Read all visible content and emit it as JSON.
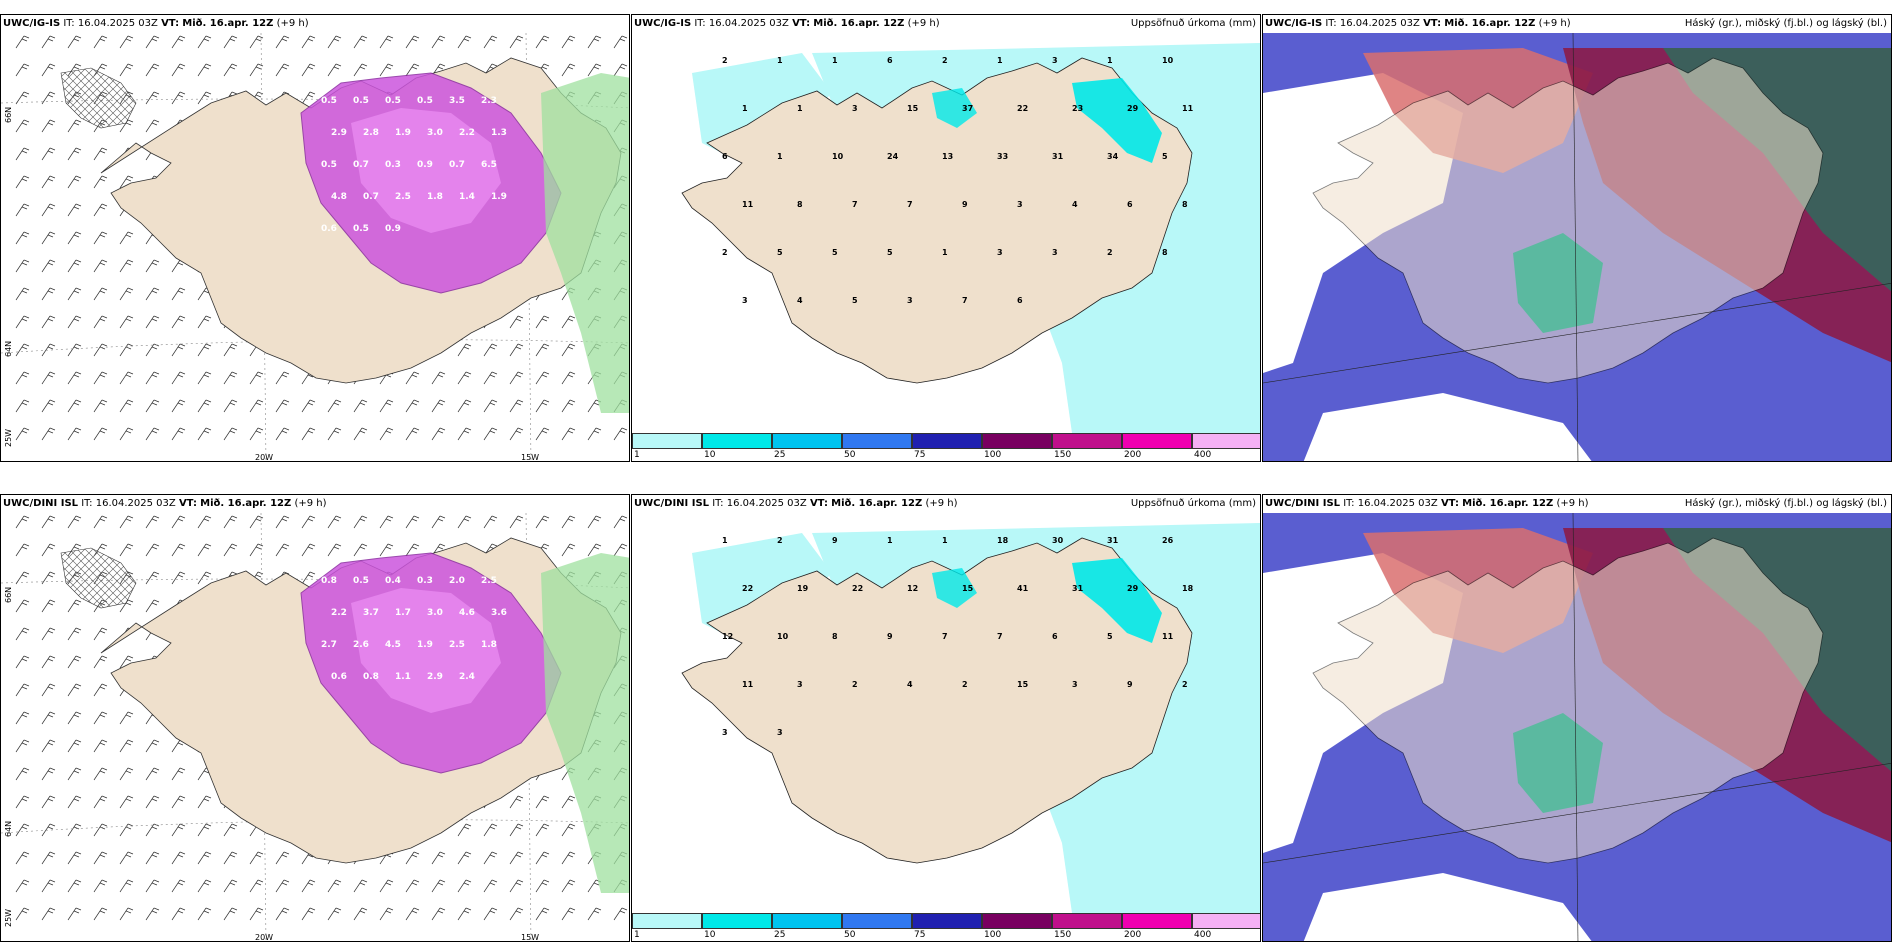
{
  "rows": [
    {
      "model": "UWC/IG-IS",
      "it_label": "IT:",
      "it": "16.04.2025 03Z",
      "vt_label": "VT:",
      "vt": "Mið. 16.apr. 12Z",
      "lead": "(+9 h)"
    },
    {
      "model": "UWC/DINI ISL",
      "it_label": "IT:",
      "it": "16.04.2025 03Z",
      "vt_label": "VT:",
      "vt": "Mið. 16.apr. 12Z",
      "lead": "(+9 h)"
    }
  ],
  "precip_title": "Uppsöfnuð úrkoma (mm)",
  "cloud_title": "Háský (gr.), miðský (fj.bl.) og lágský (bl.)",
  "colorbar": {
    "ticks": [
      "1",
      "10",
      "25",
      "50",
      "75",
      "100",
      "150",
      "200",
      "400"
    ],
    "colors": [
      "#b8f8f8",
      "#00e8e8",
      "#00c4f0",
      "#3078f0",
      "#2020b0",
      "#780060",
      "#c0108c",
      "#f000b0",
      "#f4b0f4"
    ]
  },
  "lon_labels": [
    "20W",
    "15W"
  ],
  "lat_labels": [
    "66N",
    "64N"
  ],
  "lat_left": "25W",
  "precip_values_top": [
    "2",
    "1",
    "1",
    "6",
    "2",
    "1",
    "3",
    "1",
    "10",
    "1",
    "1",
    "3",
    "15",
    "37",
    "22",
    "23",
    "29",
    "11",
    "6",
    "1",
    "10",
    "24",
    "13",
    "33",
    "31",
    "34",
    "5",
    "11",
    "8",
    "7",
    "7",
    "9",
    "3",
    "4",
    "6",
    "8",
    "2",
    "5",
    "5",
    "5",
    "1",
    "3",
    "3",
    "2",
    "8",
    "3",
    "4",
    "5",
    "3",
    "7",
    "6"
  ],
  "precip_values_bottom": [
    "1",
    "2",
    "9",
    "1",
    "1",
    "18",
    "30",
    "31",
    "26",
    "22",
    "19",
    "22",
    "12",
    "15",
    "41",
    "31",
    "29",
    "18",
    "12",
    "10",
    "8",
    "9",
    "7",
    "7",
    "6",
    "5",
    "11",
    "11",
    "3",
    "2",
    "4",
    "2",
    "15",
    "3",
    "9",
    "2",
    "3",
    "3"
  ],
  "snow_values_top": [
    "0.5",
    "0.5",
    "0.5",
    "0.5",
    "3.5",
    "2.3",
    "2.9",
    "2.8",
    "1.9",
    "3.0",
    "2.2",
    "1.3",
    "0.5",
    "0.7",
    "0.3",
    "0.9",
    "0.7",
    "6.5",
    "4.8",
    "0.7",
    "2.5",
    "1.8",
    "1.4",
    "1.9",
    "0.6",
    "0.5",
    "0.9"
  ],
  "snow_values_bottom": [
    "0.8",
    "0.5",
    "0.4",
    "0.3",
    "2.0",
    "2.5",
    "2.2",
    "3.7",
    "1.7",
    "3.0",
    "4.6",
    "3.6",
    "2.7",
    "2.6",
    "4.5",
    "1.9",
    "2.5",
    "1.8",
    "0.6",
    "0.8",
    "1.1",
    "2.9",
    "2.4"
  ]
}
